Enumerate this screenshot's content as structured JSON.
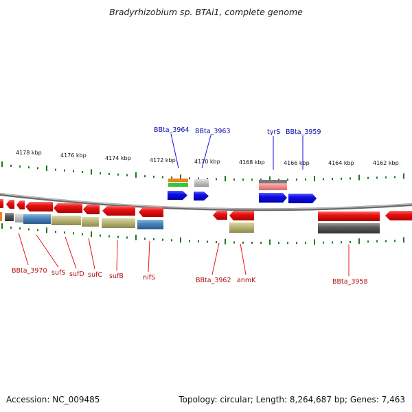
{
  "title": "Bradyrhizobium sp. BTAi1, complete genome",
  "footer": {
    "accession": "Accession: NC_009485",
    "summary": "Topology: circular; Length: 8,264,687 bp; Genes: 7,463"
  },
  "scale_labels": [
    "4178 kbp",
    "4176 kbp",
    "4174 kbp",
    "4172 kbp",
    "4170 kbp",
    "4168 kbp",
    "4166 kbp",
    "4164 kbp",
    "4162 kbp"
  ],
  "top_gene_labels": [
    "BBta_3964",
    "BBta_3963",
    "tyrS",
    "BBta_3959"
  ],
  "bottom_gene_labels": [
    "BBta_3970",
    "sufS",
    "sufD",
    "sufC",
    "sufB",
    "nifS",
    "BBta_3962",
    "anmK",
    "BBta_3958"
  ],
  "colors": {
    "forward": "#1010e8",
    "reverse": "#e81414",
    "top_label": "#0a0aaa",
    "bottom_label": "#b01010",
    "ruler": "#1a7a1a",
    "backbone": "#888888"
  }
}
